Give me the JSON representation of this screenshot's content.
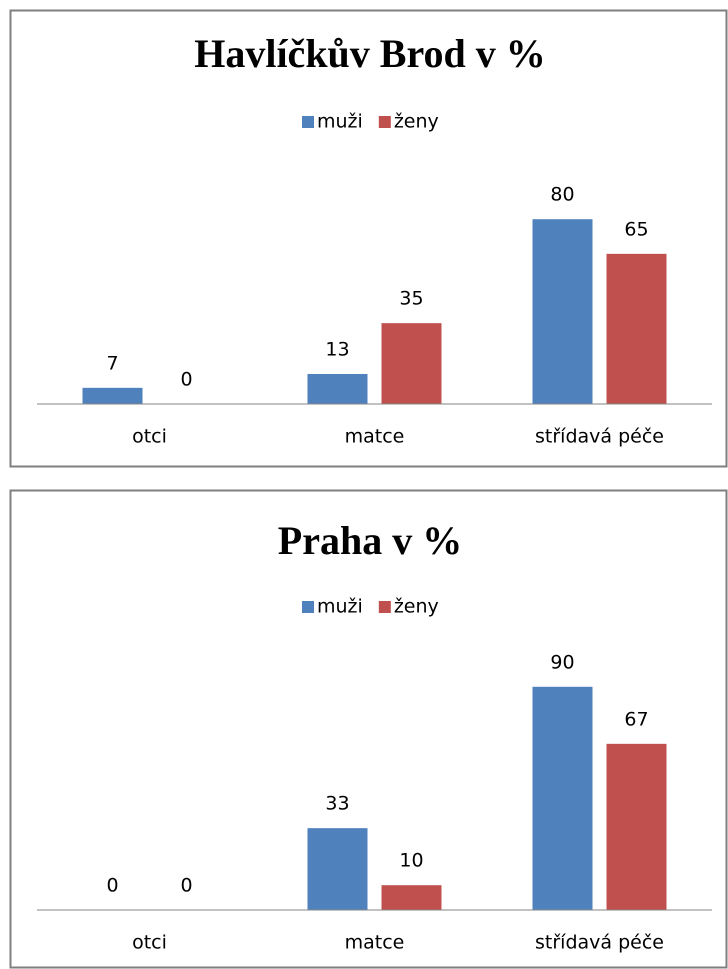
{
  "chart_data": [
    {
      "type": "bar",
      "title": "Havlíčkův Brod v %",
      "categories": [
        "otci",
        "matce",
        "střídavá péče"
      ],
      "series": [
        {
          "name": "muži",
          "color": "#4f81bd",
          "values": [
            7,
            13,
            80
          ]
        },
        {
          "name": "ženy",
          "color": "#c0504d",
          "values": [
            0,
            35,
            65
          ]
        }
      ],
      "ylim": [
        0,
        100
      ],
      "legend": "top"
    },
    {
      "type": "bar",
      "title": "Praha v %",
      "categories": [
        "otci",
        "matce",
        "střídavá péče"
      ],
      "series": [
        {
          "name": "muži",
          "color": "#4f81bd",
          "values": [
            0,
            33,
            90
          ]
        },
        {
          "name": "ženy",
          "color": "#c0504d",
          "values": [
            0,
            10,
            67
          ]
        }
      ],
      "ylim": [
        0,
        100
      ],
      "legend": "top"
    }
  ]
}
